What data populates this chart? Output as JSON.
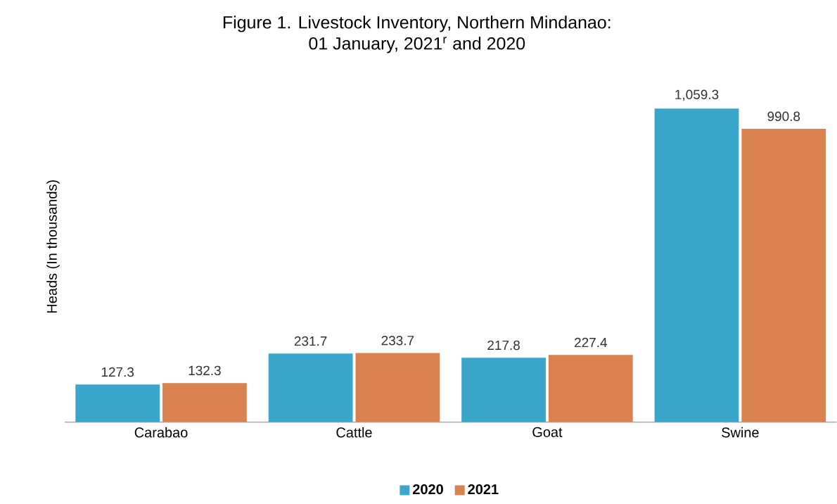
{
  "chart_data": {
    "type": "bar",
    "title": "Figure 1. Livestock Inventory, Northern Mindanao:",
    "subtitle": "01 January, 2021$^{r}$ and 2020",
    "ylabel": "Heads (In thousands)",
    "categories": [
      "Carabao",
      "Cattle",
      "Goat",
      "Swine"
    ],
    "series": [
      {
        "name": "2020",
        "color": "#3ba6cb",
        "values": [
          127.3,
          231.7,
          217.8,
          1059.3
        ],
        "value_labels": [
          "127.3",
          "231.7",
          "217.8",
          "1,059.3"
        ]
      },
      {
        "name": "2021",
        "color": "#d98250",
        "values": [
          132.3,
          233.7,
          227.4,
          990.8
        ],
        "value_labels": [
          "132.3",
          "233.7",
          "227.4",
          "990.8"
        ]
      }
    ],
    "legend": "bottom",
    "grid": false
  }
}
